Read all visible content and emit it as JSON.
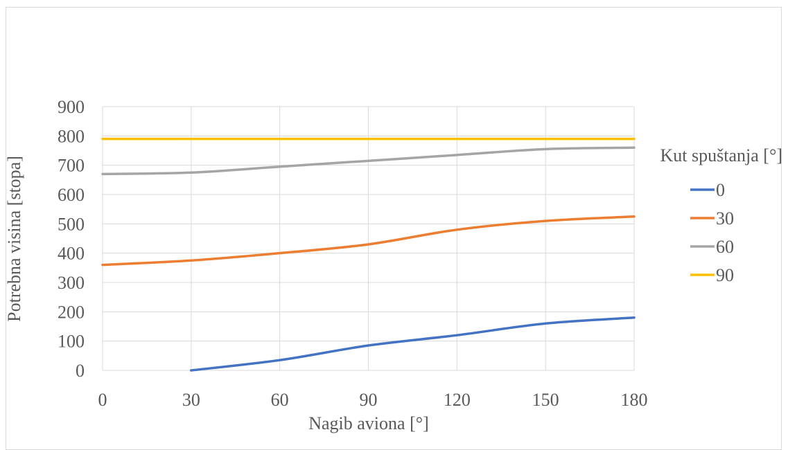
{
  "chart_data": {
    "type": "line",
    "title": "",
    "xlabel": "Nagib aviona [°]",
    "ylabel": "Potrebna visina [stopa]",
    "xlim": [
      0,
      180
    ],
    "ylim": [
      0,
      900
    ],
    "xticks": [
      0,
      30,
      60,
      90,
      120,
      150,
      180
    ],
    "yticks": [
      0,
      100,
      200,
      300,
      400,
      500,
      600,
      700,
      800,
      900
    ],
    "grid": true,
    "legend_title": "Kut spuštanja [°]",
    "legend_position": "right",
    "series": [
      {
        "name": "0",
        "color": "#4472c4",
        "x": [
          30,
          60,
          90,
          120,
          150,
          180
        ],
        "y": [
          0,
          35,
          85,
          120,
          160,
          180
        ]
      },
      {
        "name": "30",
        "color": "#ed7d31",
        "x": [
          0,
          30,
          60,
          90,
          120,
          150,
          180
        ],
        "y": [
          360,
          375,
          400,
          430,
          480,
          510,
          525
        ]
      },
      {
        "name": "60",
        "color": "#a5a5a5",
        "x": [
          0,
          30,
          60,
          90,
          120,
          150,
          180
        ],
        "y": [
          670,
          675,
          695,
          715,
          735,
          755,
          760
        ]
      },
      {
        "name": "90",
        "color": "#ffc000",
        "x": [
          0,
          30,
          60,
          90,
          120,
          150,
          180
        ],
        "y": [
          790,
          790,
          790,
          790,
          790,
          790,
          790
        ]
      }
    ]
  }
}
